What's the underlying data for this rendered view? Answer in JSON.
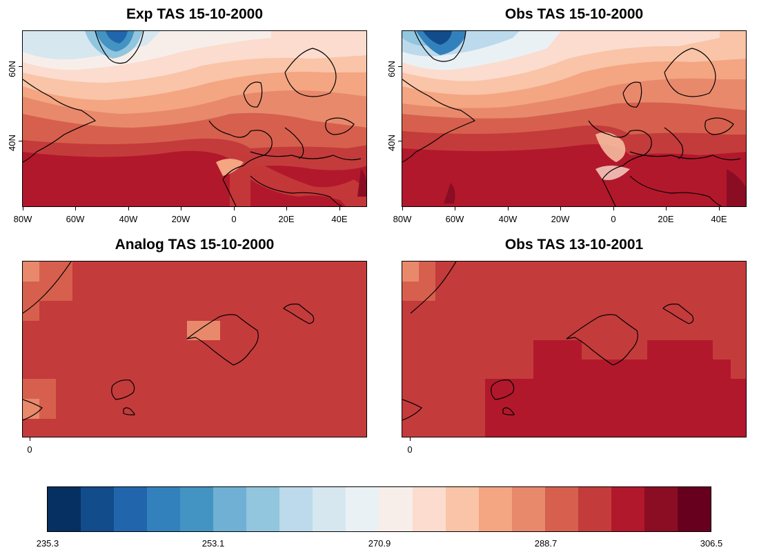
{
  "panels": [
    {
      "title": "Exp TAS 15-10-2000"
    },
    {
      "title": "Obs TAS 15-10-2000"
    },
    {
      "title": "Analog TAS 15-10-2000"
    },
    {
      "title": "Obs TAS 13-10-2001"
    }
  ],
  "axes": {
    "lon_ticks": [
      "80W",
      "60W",
      "40W",
      "20W",
      "0",
      "20E",
      "40E"
    ],
    "lat_ticks": [
      "60N",
      "40N"
    ],
    "zoom_lon_ticks": [
      "0"
    ]
  },
  "colorbar": {
    "colors": [
      "#053061",
      "#124c8b",
      "#2166ac",
      "#3381bc",
      "#4393c3",
      "#6fb0d4",
      "#92c5de",
      "#bcdaeb",
      "#d6e7f0",
      "#eaf1f5",
      "#f7eeea",
      "#fbdcce",
      "#f9c4a7",
      "#f4a582",
      "#e8896c",
      "#d6604d",
      "#c43b3b",
      "#b2182b",
      "#8b0d24",
      "#67001f"
    ],
    "labels": [
      "235.3",
      "253.1",
      "270.9",
      "288.7",
      "306.5"
    ]
  }
}
